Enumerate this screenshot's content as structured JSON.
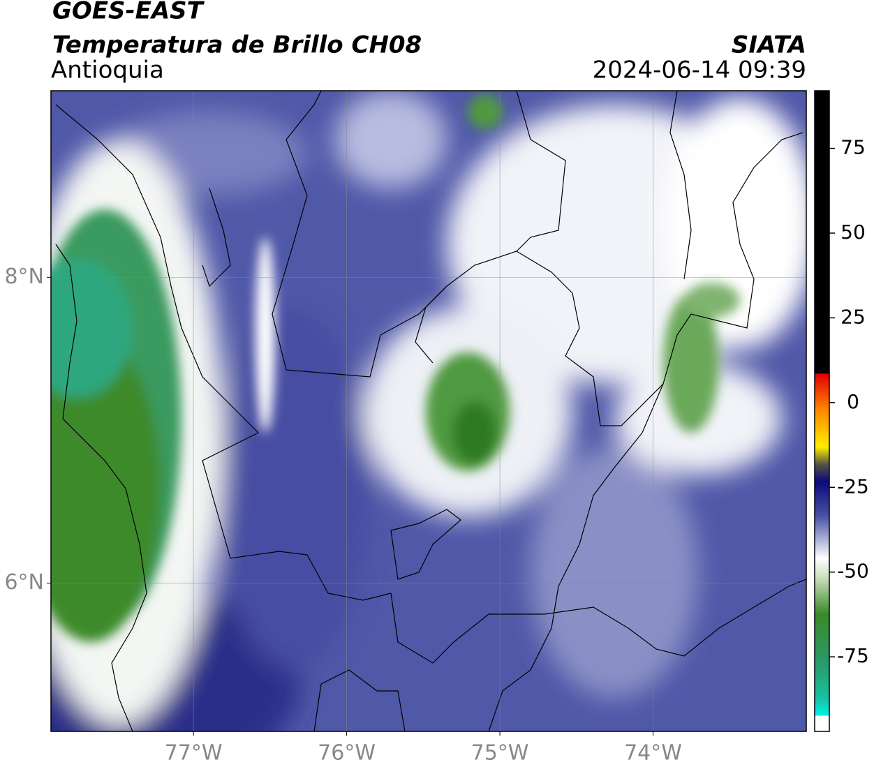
{
  "header": {
    "source": "GOES-EAST",
    "product": "Temperatura de Brillo CH08",
    "region": "Antioquia",
    "agency": "SIATA",
    "timestamp": "2024-06-14 09:39"
  },
  "map": {
    "xlim": [
      -77.93,
      -73.0
    ],
    "ylim": [
      5.03,
      9.22
    ],
    "lon_ticks": [
      {
        "value": -77,
        "label": "77°W"
      },
      {
        "value": -76,
        "label": "76°W"
      },
      {
        "value": -75,
        "label": "75°W"
      },
      {
        "value": -74,
        "label": "74°W"
      }
    ],
    "lat_ticks": [
      {
        "value": 8,
        "label": "8°N"
      },
      {
        "value": 6,
        "label": "6°N"
      }
    ]
  },
  "colorbar": {
    "range": [
      -97,
      92
    ],
    "ticks": [
      75,
      50,
      25,
      0,
      -25,
      -50,
      -75
    ]
  }
}
